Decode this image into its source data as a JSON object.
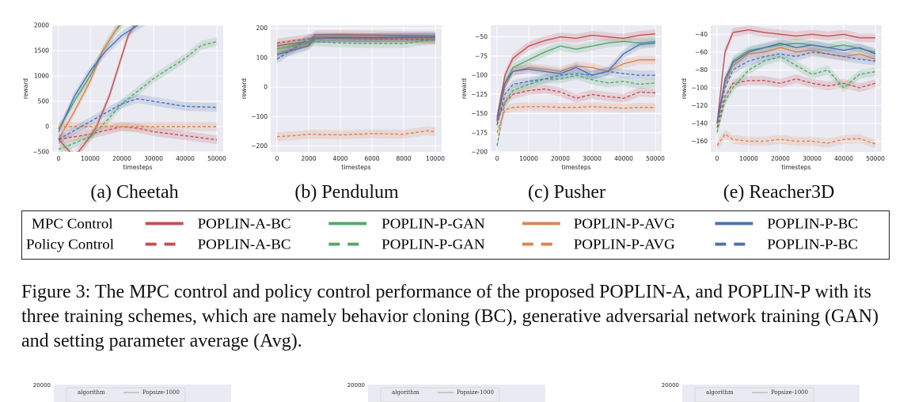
{
  "chart_data": [
    {
      "type": "line",
      "subcaption": "(a) Cheetah",
      "xlabel": "timesteps",
      "ylabel": "reward",
      "xlim": [
        -2000,
        52000
      ],
      "ylim": [
        -500,
        2000
      ],
      "xticks": [
        0,
        10000,
        20000,
        30000,
        40000,
        50000
      ],
      "yticks": [
        -500,
        0,
        500,
        1000,
        1500,
        2000
      ],
      "series": [
        {
          "name": "POPLIN-A-BC",
          "mode": "MPC Control",
          "x": [
            0,
            5000,
            10000,
            12000,
            16000,
            19000,
            22000,
            25000
          ],
          "y": [
            -250,
            -600,
            -200,
            0,
            600,
            1200,
            1800,
            2100
          ]
        },
        {
          "name": "POPLIN-P-GAN",
          "mode": "MPC Control",
          "x": [
            0,
            5000,
            10000,
            14000,
            18000,
            21000
          ],
          "y": [
            -50,
            500,
            1000,
            1500,
            1900,
            2100
          ]
        },
        {
          "name": "POPLIN-P-AVG",
          "mode": "MPC Control",
          "x": [
            0,
            5000,
            10000,
            14000,
            18000,
            20000
          ],
          "y": [
            -250,
            300,
            900,
            1500,
            1900,
            2100
          ]
        },
        {
          "name": "POPLIN-P-BC",
          "mode": "MPC Control",
          "x": [
            0,
            5000,
            10000,
            15000,
            20000,
            25000,
            28000
          ],
          "y": [
            -100,
            600,
            1100,
            1500,
            1800,
            2000,
            2100
          ]
        },
        {
          "name": "POPLIN-A-BC",
          "mode": "Policy Control",
          "x": [
            0,
            10000,
            20000,
            25000,
            30000,
            40000,
            50000
          ],
          "y": [
            -250,
            -150,
            0,
            -30,
            -100,
            -180,
            -260
          ]
        },
        {
          "name": "POPLIN-P-GAN",
          "mode": "Policy Control",
          "x": [
            0,
            10000,
            15000,
            20000,
            25000,
            30000,
            35000,
            40000,
            45000,
            50000
          ],
          "y": [
            -450,
            -200,
            100,
            450,
            700,
            950,
            1150,
            1350,
            1600,
            1680
          ]
        },
        {
          "name": "POPLIN-P-AVG",
          "mode": "Policy Control",
          "x": [
            0,
            10000,
            20000,
            30000,
            40000,
            50000
          ],
          "y": [
            0,
            0,
            0,
            0,
            0,
            0
          ]
        },
        {
          "name": "POPLIN-P-BC",
          "mode": "Policy Control",
          "x": [
            0,
            10000,
            20000,
            25000,
            30000,
            40000,
            50000
          ],
          "y": [
            -250,
            100,
            450,
            550,
            500,
            400,
            380
          ]
        }
      ]
    },
    {
      "type": "line",
      "subcaption": "(b) Pendulum",
      "xlabel": "timesteps",
      "ylabel": "reward",
      "xlim": [
        -400,
        10400
      ],
      "ylim": [
        -220,
        210
      ],
      "xticks": [
        0,
        2000,
        4000,
        6000,
        8000,
        10000
      ],
      "yticks": [
        -200,
        -100,
        0,
        100,
        200
      ],
      "series": [
        {
          "name": "POPLIN-A-BC",
          "mode": "MPC Control",
          "x": [
            0,
            1000,
            2000,
            2400,
            4000,
            6000,
            8000,
            10000
          ],
          "y": [
            140,
            148,
            155,
            178,
            178,
            177,
            176,
            175
          ]
        },
        {
          "name": "POPLIN-P-GAN",
          "mode": "MPC Control",
          "x": [
            0,
            1000,
            2000,
            2400,
            4000,
            6000,
            8000,
            10000
          ],
          "y": [
            130,
            140,
            150,
            170,
            170,
            168,
            168,
            168
          ]
        },
        {
          "name": "POPLIN-P-AVG",
          "mode": "MPC Control",
          "x": [
            0,
            1000,
            2000,
            2400,
            4000,
            6000,
            8000,
            10000
          ],
          "y": [
            115,
            130,
            145,
            168,
            165,
            163,
            165,
            164
          ]
        },
        {
          "name": "POPLIN-P-BC",
          "mode": "MPC Control",
          "x": [
            0,
            1000,
            2000,
            2400,
            4000,
            6000,
            8000,
            10000
          ],
          "y": [
            110,
            125,
            140,
            165,
            168,
            168,
            170,
            170
          ]
        },
        {
          "name": "POPLIN-A-BC",
          "mode": "Policy Control",
          "x": [
            0,
            2000,
            4000,
            6000,
            8000,
            10000
          ],
          "y": [
            150,
            165,
            168,
            165,
            163,
            160
          ]
        },
        {
          "name": "POPLIN-P-GAN",
          "mode": "Policy Control",
          "x": [
            0,
            2000,
            4000,
            6000,
            8000,
            9600,
            10000
          ],
          "y": [
            130,
            155,
            150,
            148,
            148,
            160,
            160
          ]
        },
        {
          "name": "POPLIN-P-AVG",
          "mode": "Policy Control",
          "x": [
            0,
            1000,
            2000,
            4000,
            6000,
            8000,
            9500,
            10000
          ],
          "y": [
            -168,
            -165,
            -160,
            -162,
            -158,
            -160,
            -148,
            -152
          ]
        },
        {
          "name": "POPLIN-P-BC",
          "mode": "Policy Control",
          "x": [
            0,
            2000,
            4000,
            6000,
            8000,
            10000
          ],
          "y": [
            95,
            165,
            168,
            168,
            170,
            170
          ]
        }
      ]
    },
    {
      "type": "line",
      "subcaption": "(c) Pusher",
      "xlabel": "timesteps",
      "ylabel": "reward",
      "xlim": [
        -2000,
        52000
      ],
      "ylim": [
        -200,
        -35
      ],
      "xticks": [
        0,
        10000,
        20000,
        30000,
        40000,
        50000
      ],
      "yticks": [
        -200,
        -175,
        -150,
        -125,
        -100,
        -75,
        -50
      ],
      "series": [
        {
          "name": "POPLIN-A-BC",
          "mode": "MPC Control",
          "x": [
            0,
            2500,
            5000,
            10000,
            15000,
            20000,
            25000,
            30000,
            35000,
            40000,
            45000,
            50000
          ],
          "y": [
            -155,
            -100,
            -78,
            -62,
            -55,
            -50,
            -52,
            -48,
            -50,
            -52,
            -48,
            -46
          ]
        },
        {
          "name": "POPLIN-P-GAN",
          "mode": "MPC Control",
          "x": [
            0,
            2500,
            5000,
            10000,
            15000,
            20000,
            25000,
            30000,
            35000,
            40000,
            45000,
            50000
          ],
          "y": [
            -160,
            -110,
            -90,
            -80,
            -70,
            -62,
            -66,
            -62,
            -58,
            -56,
            -58,
            -56
          ]
        },
        {
          "name": "POPLIN-P-AVG",
          "mode": "MPC Control",
          "x": [
            0,
            2500,
            5000,
            10000,
            15000,
            20000,
            25000,
            30000,
            35000,
            40000,
            45000,
            50000
          ],
          "y": [
            -160,
            -115,
            -95,
            -90,
            -92,
            -95,
            -88,
            -90,
            -95,
            -85,
            -80,
            -80
          ]
        },
        {
          "name": "POPLIN-P-BC",
          "mode": "MPC Control",
          "x": [
            0,
            2500,
            5000,
            10000,
            15000,
            20000,
            25000,
            30000,
            35000,
            40000,
            45000,
            50000
          ],
          "y": [
            -158,
            -110,
            -95,
            -92,
            -95,
            -98,
            -90,
            -100,
            -95,
            -72,
            -60,
            -58
          ]
        },
        {
          "name": "POPLIN-A-BC",
          "mode": "Policy Control",
          "x": [
            0,
            2500,
            5000,
            10000,
            15000,
            20000,
            25000,
            30000,
            35000,
            40000,
            45000,
            50000
          ],
          "y": [
            -160,
            -135,
            -125,
            -120,
            -118,
            -122,
            -130,
            -125,
            -128,
            -130,
            -122,
            -123
          ]
        },
        {
          "name": "POPLIN-P-GAN",
          "mode": "Policy Control",
          "x": [
            0,
            2500,
            5000,
            10000,
            15000,
            20000,
            25000,
            30000,
            35000,
            40000,
            45000,
            50000
          ],
          "y": [
            -192,
            -135,
            -120,
            -112,
            -105,
            -105,
            -100,
            -106,
            -110,
            -108,
            -112,
            -110
          ]
        },
        {
          "name": "POPLIN-P-AVG",
          "mode": "Policy Control",
          "x": [
            0,
            2500,
            5000,
            10000,
            15000,
            20000,
            25000,
            30000,
            35000,
            40000,
            45000,
            50000
          ],
          "y": [
            -175,
            -145,
            -142,
            -141,
            -141,
            -142,
            -142,
            -141,
            -142,
            -143,
            -142,
            -142
          ]
        },
        {
          "name": "POPLIN-P-BC",
          "mode": "Policy Control",
          "x": [
            0,
            2500,
            5000,
            10000,
            15000,
            20000,
            25000,
            30000,
            35000,
            40000,
            45000,
            50000
          ],
          "y": [
            -165,
            -125,
            -112,
            -108,
            -105,
            -100,
            -98,
            -100,
            -95,
            -98,
            -100,
            -100
          ]
        }
      ]
    },
    {
      "type": "line",
      "subcaption": "(e) Reacher3D",
      "xlabel": "timesteps",
      "ylabel": "reward",
      "xlim": [
        -2000,
        52000
      ],
      "ylim": [
        -172,
        -30
      ],
      "xticks": [
        0,
        10000,
        20000,
        30000,
        40000,
        50000
      ],
      "yticks": [
        -160,
        -140,
        -120,
        -100,
        -80,
        -60,
        -40
      ],
      "series": [
        {
          "name": "POPLIN-A-BC",
          "mode": "MPC Control",
          "x": [
            0,
            2500,
            5000,
            10000,
            15000,
            20000,
            25000,
            30000,
            35000,
            40000,
            45000,
            50000
          ],
          "y": [
            -140,
            -60,
            -38,
            -35,
            -38,
            -40,
            -42,
            -40,
            -42,
            -40,
            -44,
            -44
          ]
        },
        {
          "name": "POPLIN-P-GAN",
          "mode": "MPC Control",
          "x": [
            0,
            2500,
            5000,
            10000,
            15000,
            20000,
            25000,
            30000,
            35000,
            40000,
            45000,
            50000
          ],
          "y": [
            -140,
            -95,
            -70,
            -58,
            -55,
            -52,
            -50,
            -52,
            -55,
            -52,
            -56,
            -60
          ]
        },
        {
          "name": "POPLIN-P-AVG",
          "mode": "MPC Control",
          "x": [
            0,
            2500,
            5000,
            10000,
            15000,
            20000,
            25000,
            30000,
            35000,
            40000,
            45000,
            50000
          ],
          "y": [
            -140,
            -95,
            -75,
            -62,
            -60,
            -55,
            -60,
            -58,
            -62,
            -65,
            -62,
            -68
          ]
        },
        {
          "name": "POPLIN-P-BC",
          "mode": "MPC Control",
          "x": [
            0,
            2500,
            5000,
            10000,
            15000,
            20000,
            25000,
            30000,
            35000,
            40000,
            45000,
            50000
          ],
          "y": [
            -140,
            -90,
            -72,
            -60,
            -55,
            -50,
            -55,
            -52,
            -55,
            -58,
            -55,
            -62
          ]
        },
        {
          "name": "POPLIN-A-BC",
          "mode": "Policy Control",
          "x": [
            0,
            2500,
            5000,
            10000,
            15000,
            20000,
            25000,
            30000,
            35000,
            40000,
            45000,
            50000
          ],
          "y": [
            -145,
            -110,
            -95,
            -92,
            -92,
            -95,
            -90,
            -95,
            -98,
            -95,
            -100,
            -95
          ]
        },
        {
          "name": "POPLIN-P-GAN",
          "mode": "Policy Control",
          "x": [
            0,
            2500,
            5000,
            10000,
            15000,
            20000,
            25000,
            30000,
            35000,
            40000,
            45000,
            50000
          ],
          "y": [
            -150,
            -115,
            -100,
            -80,
            -70,
            -65,
            -75,
            -85,
            -80,
            -100,
            -85,
            -82
          ]
        },
        {
          "name": "POPLIN-P-AVG",
          "mode": "Policy Control",
          "x": [
            0,
            2500,
            5000,
            10000,
            15000,
            20000,
            25000,
            30000,
            35000,
            40000,
            45000,
            50000
          ],
          "y": [
            -165,
            -152,
            -158,
            -160,
            -160,
            -158,
            -160,
            -160,
            -162,
            -158,
            -157,
            -163
          ]
        },
        {
          "name": "POPLIN-P-BC",
          "mode": "Policy Control",
          "x": [
            0,
            2500,
            5000,
            10000,
            15000,
            20000,
            25000,
            30000,
            35000,
            40000,
            45000,
            50000
          ],
          "y": [
            -140,
            -100,
            -80,
            -70,
            -65,
            -62,
            -65,
            -60,
            -62,
            -65,
            -68,
            -70
          ]
        }
      ]
    }
  ],
  "legend": {
    "rows": [
      "MPC Control",
      "Policy Control"
    ],
    "entries": [
      "POPLIN-A-BC",
      "POPLIN-P-GAN",
      "POPLIN-P-AVG",
      "POPLIN-P-BC"
    ]
  },
  "colors": {
    "POPLIN-A-BC": "#c44e52",
    "POPLIN-P-GAN": "#55a868",
    "POPLIN-P-AVG": "#dd8452",
    "POPLIN-P-BC": "#4c72b0",
    "plot_bg": "#eaeaf2"
  },
  "caption": "Figure 3: The MPC control and policy control performance of the proposed POPLIN-A, and POPLIN-P with its three training schemes, which are namely behavior cloning (BC), generative adversarial network training (GAN) and setting parameter average (Avg).",
  "bottom_panels": [
    {
      "ytick": "20000",
      "legend_title": "algorithm",
      "legend_entry": "Popsize-1000"
    },
    {
      "ytick": "20000",
      "legend_title": "algorithm",
      "legend_entry": "Popsize-1000"
    },
    {
      "ytick": "20000",
      "legend_title": "algorithm",
      "legend_entry": "Popsize-1000"
    }
  ]
}
